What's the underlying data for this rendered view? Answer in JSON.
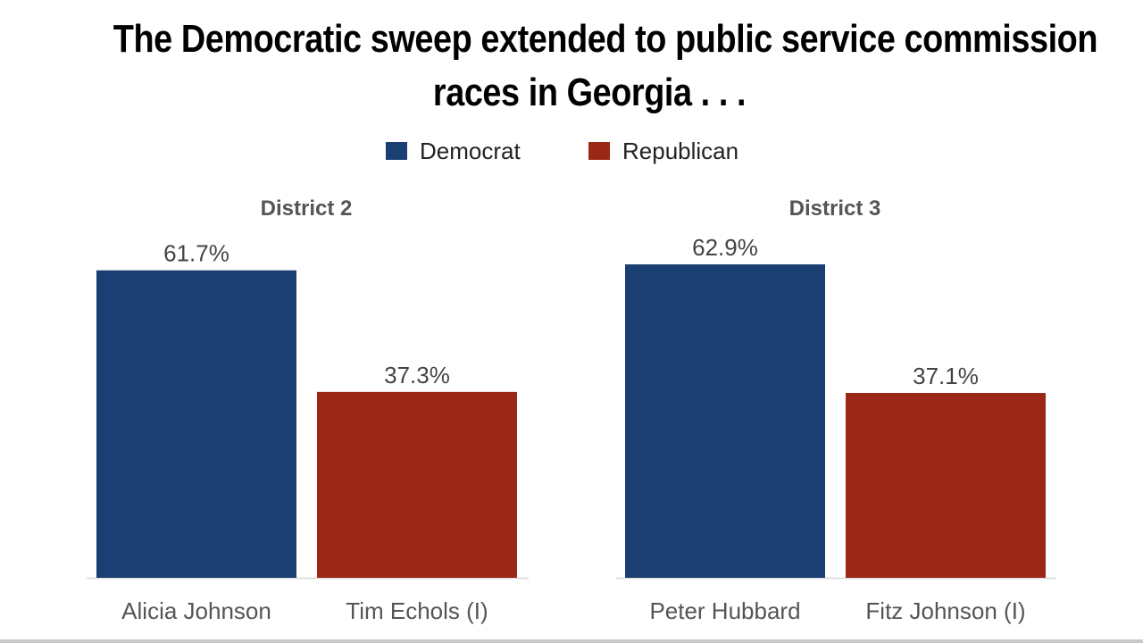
{
  "title_lines": [
    "The Democratic sweep extended to public service commission",
    "races in Georgia . . ."
  ],
  "legend": [
    {
      "label": "Democrat",
      "color": "#1b3f73"
    },
    {
      "label": "Republican",
      "color": "#9b2716"
    }
  ],
  "chart_data": [
    {
      "type": "bar",
      "title": "District 2",
      "categories": [
        "Alicia Johnson",
        "Tim Echols (I)"
      ],
      "values": [
        61.7,
        37.3
      ],
      "value_labels": [
        "61.7%",
        "37.3%"
      ],
      "parties": [
        "Democrat",
        "Republican"
      ],
      "ylim": [
        0,
        62.9
      ]
    },
    {
      "type": "bar",
      "title": "District 3",
      "categories": [
        "Peter Hubbard",
        "Fitz Johnson (I)"
      ],
      "values": [
        62.9,
        37.1
      ],
      "value_labels": [
        "62.9%",
        "37.1%"
      ],
      "parties": [
        "Democrat",
        "Republican"
      ],
      "ylim": [
        0,
        62.9
      ]
    }
  ]
}
